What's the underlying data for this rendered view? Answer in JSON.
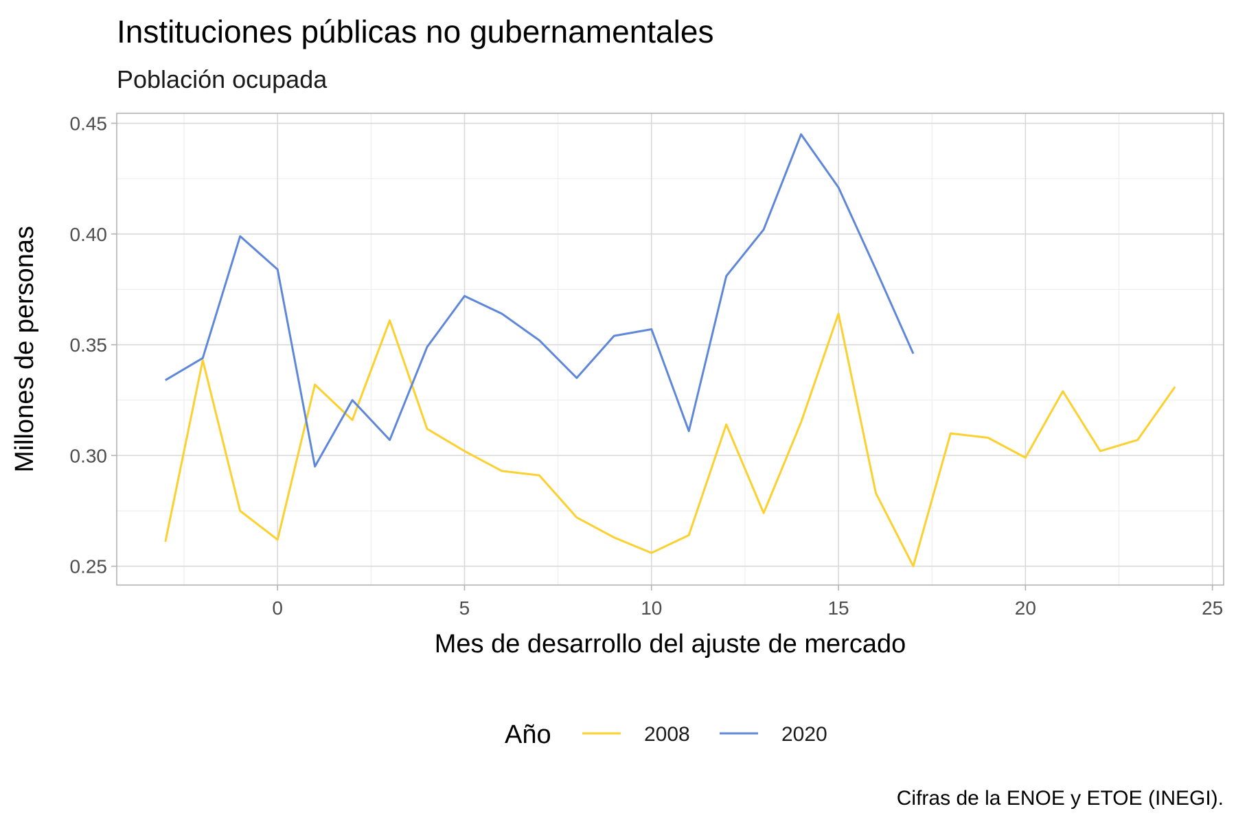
{
  "chart_data": {
    "type": "line",
    "title": "Instituciones públicas no gubernamentales",
    "subtitle": "Población ocupada",
    "xlabel": "Mes de desarrollo del ajuste de mercado",
    "ylabel": "Millones de personas",
    "caption": "Cifras de la ENOE y ETOE (INEGI).",
    "xlim": [
      -4.3,
      25.3
    ],
    "ylim": [
      0.2415,
      0.4545
    ],
    "x_ticks": [
      0,
      5,
      10,
      15,
      20,
      25
    ],
    "x_tick_labels": [
      "0",
      "5",
      "10",
      "15",
      "20",
      "25"
    ],
    "y_ticks": [
      0.25,
      0.3,
      0.35,
      0.4,
      0.45
    ],
    "y_tick_labels": [
      "0.25",
      "0.30",
      "0.35",
      "0.40",
      "0.45"
    ],
    "grid": true,
    "legend": {
      "title": "Año",
      "position": "bottom"
    },
    "series": [
      {
        "name": "2008",
        "color": "#fcd02f",
        "x": [
          -3,
          -2,
          -1,
          0,
          1,
          2,
          3,
          4,
          5,
          6,
          7,
          8,
          9,
          10,
          11,
          12,
          13,
          14,
          15,
          16,
          17,
          18,
          19,
          20,
          21,
          22,
          23,
          24
        ],
        "y": [
          0.261,
          0.343,
          0.275,
          0.262,
          0.332,
          0.316,
          0.361,
          0.312,
          0.302,
          0.293,
          0.291,
          0.272,
          0.263,
          0.256,
          0.264,
          0.314,
          0.274,
          0.315,
          0.364,
          0.283,
          0.25,
          0.31,
          0.308,
          0.299,
          0.329,
          0.302,
          0.307,
          0.331
        ]
      },
      {
        "name": "2020",
        "color": "#5f87d9",
        "x": [
          -3,
          -2,
          -1,
          0,
          1,
          2,
          3,
          4,
          5,
          6,
          7,
          8,
          9,
          10,
          11,
          12,
          13,
          14,
          15,
          16,
          17
        ],
        "y": [
          0.334,
          0.344,
          0.399,
          0.384,
          0.295,
          0.325,
          0.307,
          0.349,
          0.372,
          0.364,
          0.352,
          0.335,
          0.354,
          0.357,
          0.311,
          0.381,
          0.402,
          0.445,
          0.421,
          0.384,
          0.346
        ]
      }
    ]
  }
}
